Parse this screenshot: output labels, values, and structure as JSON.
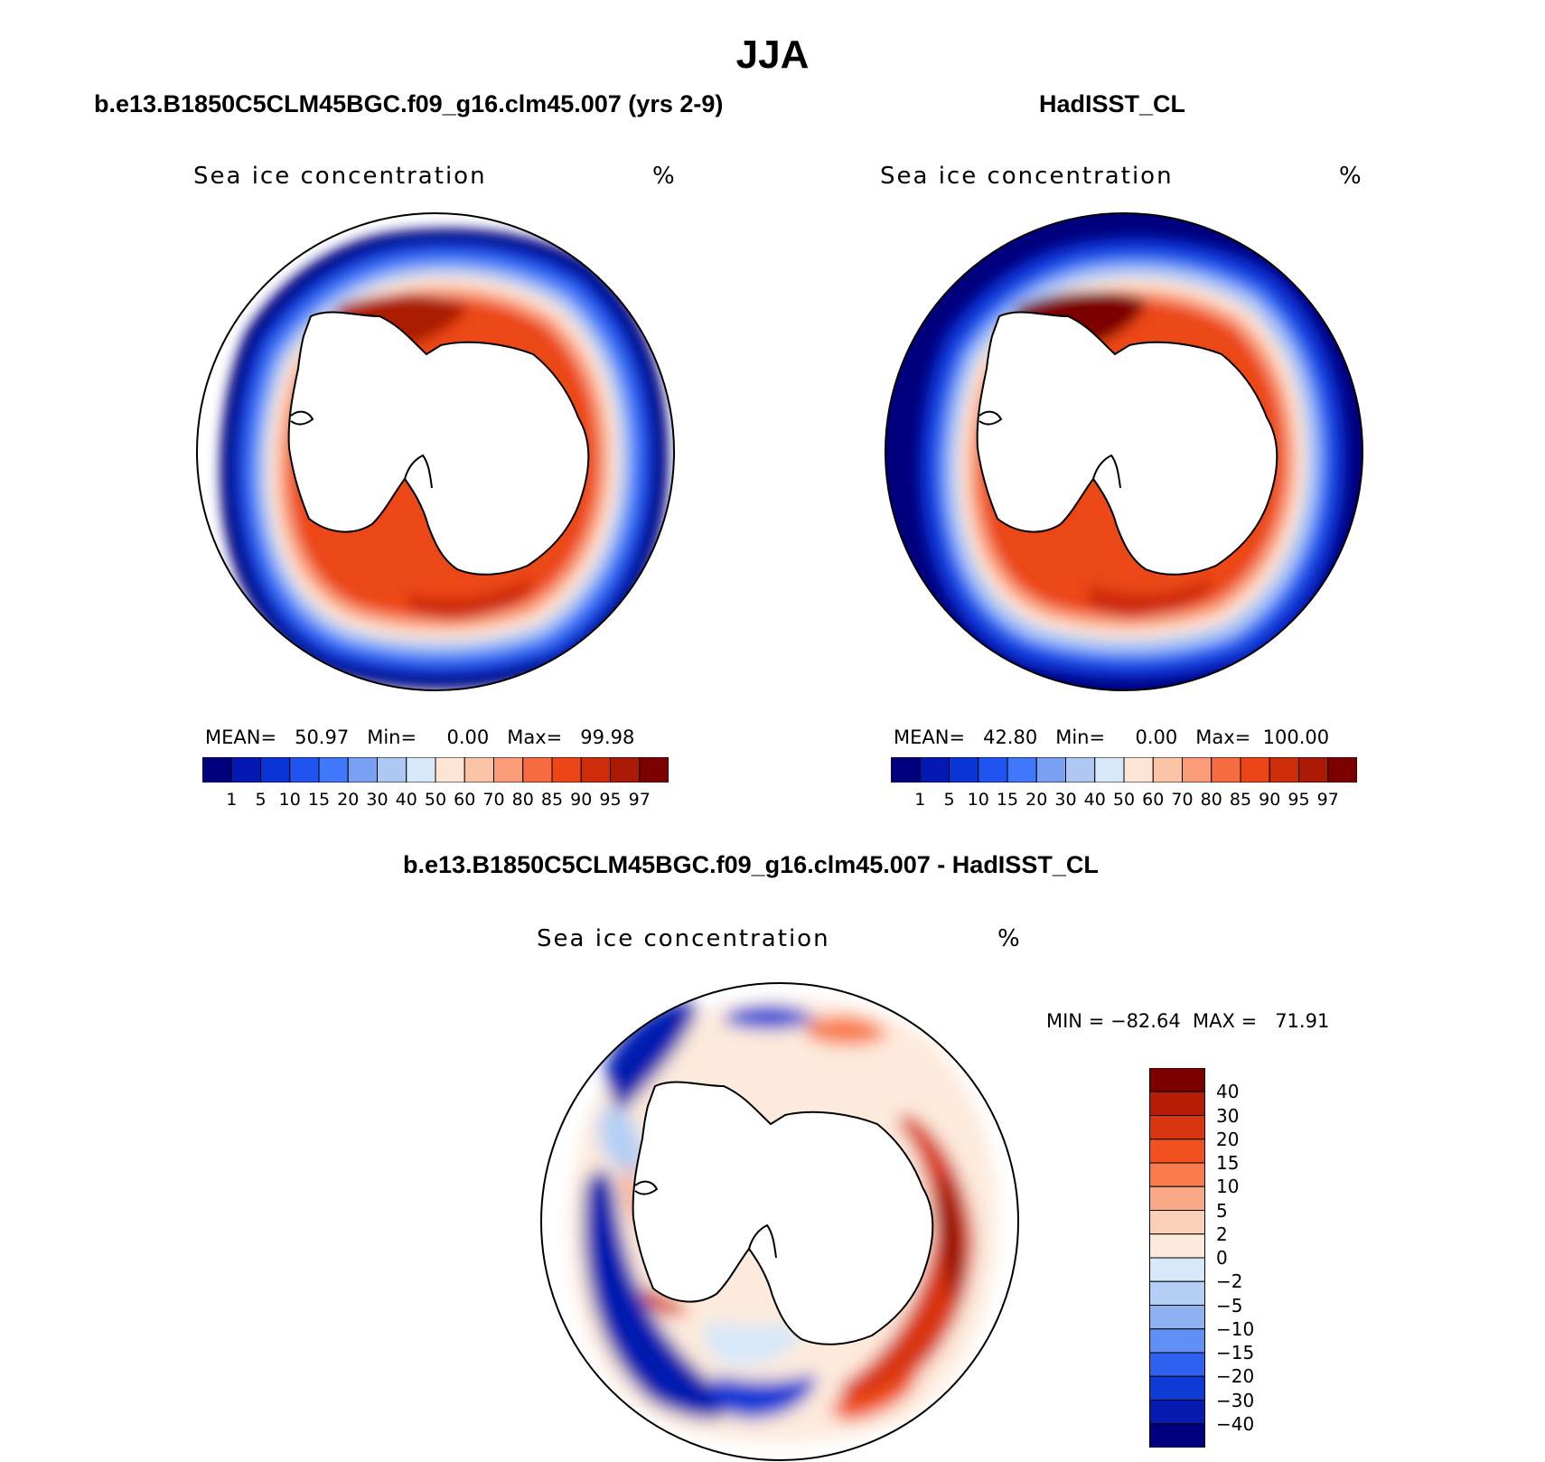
{
  "figure": {
    "title": "JJA",
    "model_title": "b.e13.B1850C5CLM45BGC.f09_g16.clm45.007 (yrs 2-9)",
    "obs_title": "HadISST_CL",
    "diff_title": "b.e13.B1850C5CLM45BGC.f09_g16.clm45.007 - HadISST_CL"
  },
  "panels": {
    "model": {
      "label": "Sea ice concentration",
      "units": "%",
      "stats": "MEAN=   50.97   Min=     0.00   Max=   99.98",
      "mean": 50.97,
      "min": 0.0,
      "max": 99.98
    },
    "obs": {
      "label": "Sea ice concentration",
      "units": "%",
      "stats": "MEAN=   42.80   Min=     0.00   Max=  100.00",
      "mean": 42.8,
      "min": 0.0,
      "max": 100.0
    },
    "diff": {
      "label": "Sea ice concentration",
      "units": "%",
      "stats": "MIN = −82.64  MAX =   71.91",
      "min": -82.64,
      "max": 71.91
    }
  },
  "colorbars": {
    "abs_levels": [
      "1",
      "5",
      "10",
      "15",
      "20",
      "30",
      "40",
      "50",
      "60",
      "70",
      "80",
      "85",
      "90",
      "95",
      "97"
    ],
    "abs_colors": [
      "#00007f",
      "#0419b4",
      "#0a35d6",
      "#1f54f0",
      "#3f78fa",
      "#7aa0f4",
      "#aec8f4",
      "#d6e8f9",
      "#fde4d4",
      "#fcc4a6",
      "#fa9c78",
      "#f66c40",
      "#ec4618",
      "#cf2c0a",
      "#ab1a04",
      "#7d0000"
    ],
    "diff_levels": [
      "40",
      "30",
      "20",
      "15",
      "10",
      "5",
      "2",
      "0",
      "−2",
      "−5",
      "−10",
      "−15",
      "−20",
      "−30",
      "−40"
    ],
    "diff_colors": [
      "#7d0000",
      "#b51d05",
      "#d8360e",
      "#f2501e",
      "#f97a4a",
      "#faa886",
      "#fcd0b8",
      "#fdeadc",
      "#d6e8f9",
      "#b4cff5",
      "#8db2f1",
      "#5f8ff5",
      "#2f61f0",
      "#0d3bd6",
      "#051cb0",
      "#00007f"
    ]
  }
}
